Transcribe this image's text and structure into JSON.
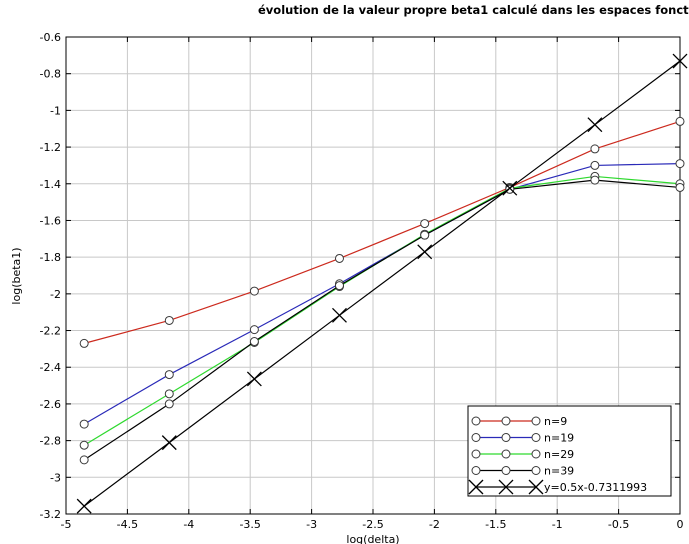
{
  "chart_data": {
    "type": "line",
    "title": "évolution de la valeur propre beta1 calculé  dans les espaces fonctionnelle de dimensions différents",
    "xlabel": "log(delta)",
    "ylabel": "log(beta1)",
    "xlim": [
      -5,
      0
    ],
    "ylim": [
      -3.2,
      -0.6
    ],
    "xticks": [
      -5,
      -4.5,
      -4,
      -3.5,
      -3,
      -2.5,
      -2,
      -1.5,
      -1,
      -0.5,
      0
    ],
    "yticks": [
      -3.2,
      -3,
      -2.8,
      -2.6,
      -2.4,
      -2.2,
      -2,
      -1.8,
      -1.6,
      -1.4,
      -1.2,
      -1,
      -0.8,
      -0.6
    ],
    "grid": true,
    "legend_position": "bottom-right",
    "x": [
      -4.852,
      -4.159,
      -3.466,
      -2.773,
      -2.079,
      -1.386,
      -0.693,
      0
    ],
    "series": [
      {
        "name": "n=9",
        "color": "#cc2a1e",
        "marker": "circle",
        "values": [
          -2.27,
          -2.145,
          -1.985,
          -1.807,
          -1.617,
          -1.42,
          -1.21,
          -1.06
        ]
      },
      {
        "name": "n=19",
        "color": "#2a2ab8",
        "marker": "circle",
        "values": [
          -2.71,
          -2.44,
          -2.195,
          -1.945,
          -1.68,
          -1.43,
          -1.3,
          -1.29
        ]
      },
      {
        "name": "n=29",
        "color": "#2fd92f",
        "marker": "circle",
        "values": [
          -2.825,
          -2.545,
          -2.265,
          -1.96,
          -1.675,
          -1.425,
          -1.36,
          -1.4
        ]
      },
      {
        "name": "n=39",
        "color": "#000000",
        "marker": "circle",
        "values": [
          -2.905,
          -2.6,
          -2.26,
          -1.955,
          -1.68,
          -1.43,
          -1.38,
          -1.42
        ]
      },
      {
        "name": "y=0.5x-0.7311993",
        "color": "#000000",
        "marker": "x",
        "values": [
          -3.157,
          -2.811,
          -2.464,
          -2.117,
          -1.771,
          -1.424,
          -1.078,
          -0.731
        ]
      }
    ]
  }
}
